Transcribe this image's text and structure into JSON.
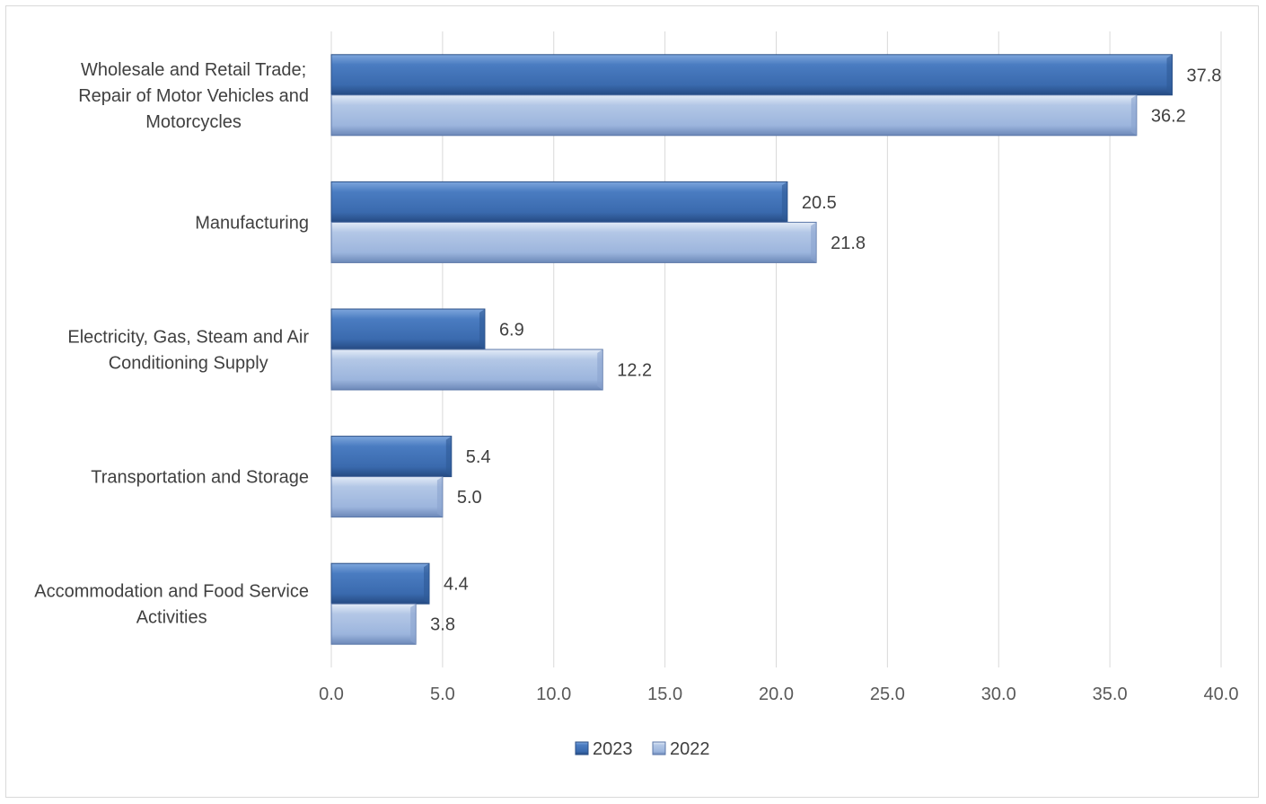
{
  "chart_data": {
    "type": "bar",
    "orientation": "horizontal",
    "title": "",
    "xlabel": "",
    "ylabel": "",
    "categories": [
      [
        "Wholesale and Retail Trade;",
        "Repair of Motor Vehicles and",
        "Motorcycles"
      ],
      [
        "Manufacturing"
      ],
      [
        "Electricity, Gas, Steam and Air",
        "Conditioning Supply"
      ],
      [
        "Transportation and Storage"
      ],
      [
        "Accommodation and Food Service",
        "Activities"
      ]
    ],
    "series": [
      {
        "name": "2023",
        "values": [
          37.8,
          20.5,
          6.9,
          5.4,
          4.4
        ],
        "labels": [
          "37.8",
          "20.5",
          "6.9",
          "5.4",
          "4.4"
        ],
        "color": "#3a6eb5"
      },
      {
        "name": "2022",
        "values": [
          36.2,
          21.8,
          12.2,
          5.0,
          3.8
        ],
        "labels": [
          "36.2",
          "21.8",
          "12.2",
          "5.0",
          "3.8"
        ],
        "color": "#8eaadb"
      }
    ],
    "xlim": [
      0,
      40
    ],
    "xticks": [
      "0.0",
      "5.0",
      "10.0",
      "15.0",
      "20.0",
      "25.0",
      "30.0",
      "35.0",
      "40.0"
    ],
    "grid": true,
    "legend_position": "bottom"
  }
}
